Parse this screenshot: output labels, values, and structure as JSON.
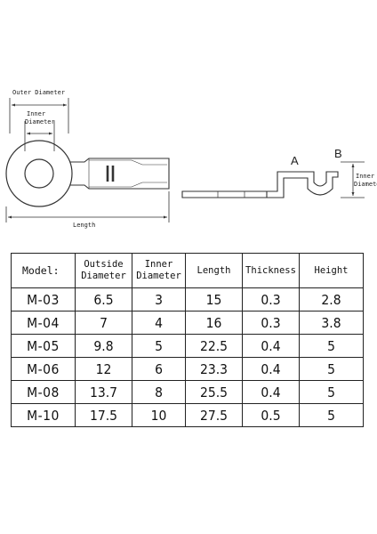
{
  "diagram": {
    "outer_diameter_label": "Outer Diameter",
    "inner_diameter_label_1": "Inner",
    "inner_diameter_label_2": "Diameter",
    "length_label": "Length",
    "side_label_a": "A",
    "side_label_b": "B",
    "side_inner_1": "Inner",
    "side_inner_2": "Diameter"
  },
  "table": {
    "headers": [
      {
        "line1": "Model:",
        "line2": ""
      },
      {
        "line1": "Outside",
        "line2": "Diameter"
      },
      {
        "line1": "Inner",
        "line2": "Diameter"
      },
      {
        "line1": "Length",
        "line2": ""
      },
      {
        "line1": "Thickness",
        "line2": ""
      },
      {
        "line1": "Height",
        "line2": ""
      }
    ],
    "rows": [
      [
        "M-03",
        "6.5",
        "3",
        "15",
        "0.3",
        "2.8"
      ],
      [
        "M-04",
        "7",
        "4",
        "16",
        "0.3",
        "3.8"
      ],
      [
        "M-05",
        "9.8",
        "5",
        "22.5",
        "0.4",
        "5"
      ],
      [
        "M-06",
        "12",
        "6",
        "23.3",
        "0.4",
        "5"
      ],
      [
        "M-08",
        "13.7",
        "8",
        "25.5",
        "0.4",
        "5"
      ],
      [
        "M-10",
        "17.5",
        "10",
        "27.5",
        "0.5",
        "5"
      ]
    ]
  }
}
